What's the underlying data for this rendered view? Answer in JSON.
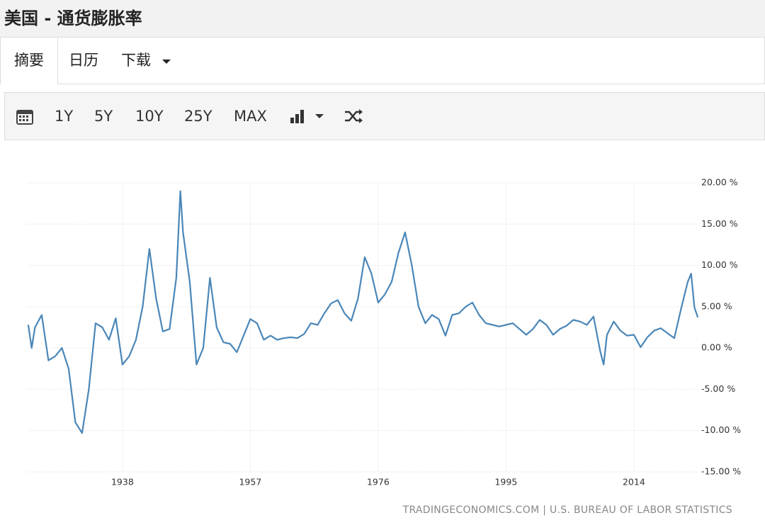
{
  "header": {
    "title": "美国 - 通货膨胀率"
  },
  "tabs": [
    "摘要",
    "日历",
    "下载"
  ],
  "toolbar": {
    "ranges": [
      "1Y",
      "5Y",
      "10Y",
      "25Y",
      "MAX"
    ]
  },
  "source": "TRADINGECONOMICS.COM | U.S. BUREAU OF LABOR STATISTICS",
  "chart_data": {
    "type": "line",
    "color": "#4a86b8",
    "grid": true,
    "x": [
      1924,
      1924.5,
      1925,
      1926,
      1927,
      1928,
      1929,
      1930,
      1931,
      1932,
      1933,
      1934,
      1935,
      1936,
      1937,
      1938,
      1939,
      1940,
      1941,
      1942,
      1943,
      1944,
      1945,
      1946,
      1946.6,
      1947,
      1948,
      1949,
      1950,
      1951,
      1952,
      1953,
      1954,
      1955,
      1956,
      1957,
      1958,
      1959,
      1960,
      1961,
      1962,
      1963,
      1964,
      1965,
      1966,
      1967,
      1968,
      1969,
      1970,
      1971,
      1972,
      1973,
      1974,
      1975,
      1976,
      1977,
      1978,
      1979,
      1980,
      1981,
      1982,
      1983,
      1984,
      1985,
      1986,
      1987,
      1988,
      1989,
      1990,
      1991,
      1992,
      1993,
      1994,
      1995,
      1996,
      1997,
      1998,
      1999,
      2000,
      2001,
      2002,
      2003,
      2004,
      2005,
      2006,
      2007,
      2008,
      2009,
      2009.5,
      2010,
      2011,
      2012,
      2013,
      2014,
      2015,
      2016,
      2017,
      2018,
      2019,
      2020,
      2021,
      2022,
      2022.5,
      2023,
      2023.5
    ],
    "values": [
      2.8,
      0.0,
      2.5,
      4.0,
      -1.5,
      -1.0,
      0.0,
      -2.5,
      -9.0,
      -10.3,
      -5.0,
      3.0,
      2.5,
      1.0,
      3.6,
      -2.0,
      -1.0,
      1.0,
      5.0,
      12.0,
      6.0,
      2.0,
      2.3,
      8.5,
      19.0,
      14.0,
      8.0,
      -2.0,
      0.0,
      8.5,
      2.5,
      0.7,
      0.5,
      -0.5,
      1.5,
      3.5,
      3.0,
      1.0,
      1.5,
      1.0,
      1.2,
      1.3,
      1.2,
      1.7,
      3.0,
      2.8,
      4.2,
      5.4,
      5.8,
      4.2,
      3.3,
      6.0,
      11.0,
      9.0,
      5.5,
      6.5,
      8.0,
      11.5,
      14.0,
      10.0,
      5.0,
      3.0,
      4.0,
      3.5,
      1.5,
      4.0,
      4.2,
      5.0,
      5.5,
      4.0,
      3.0,
      2.8,
      2.6,
      2.8,
      3.0,
      2.3,
      1.6,
      2.3,
      3.4,
      2.8,
      1.6,
      2.3,
      2.7,
      3.4,
      3.2,
      2.8,
      3.8,
      -0.4,
      -2.0,
      1.6,
      3.2,
      2.1,
      1.5,
      1.6,
      0.1,
      1.3,
      2.1,
      2.4,
      1.8,
      1.2,
      4.7,
      8.0,
      9.0,
      4.9,
      3.7
    ],
    "xlim": [
      1923.8,
      2023.8
    ],
    "xticks": [
      1938,
      1957,
      1976,
      1995,
      2014
    ],
    "ylim": [
      -15,
      20
    ],
    "yticks": [
      {
        "value": 20,
        "label": "20.00 %"
      },
      {
        "value": 15,
        "label": "15.00 %"
      },
      {
        "value": 10,
        "label": "10.00 %"
      },
      {
        "value": 5,
        "label": "5.00 %"
      },
      {
        "value": 0,
        "label": "0.00 %"
      },
      {
        "value": -5,
        "label": "-5.00 %"
      },
      {
        "value": -10,
        "label": "-10.00 %"
      },
      {
        "value": -15,
        "label": "-15.00 %"
      }
    ]
  }
}
